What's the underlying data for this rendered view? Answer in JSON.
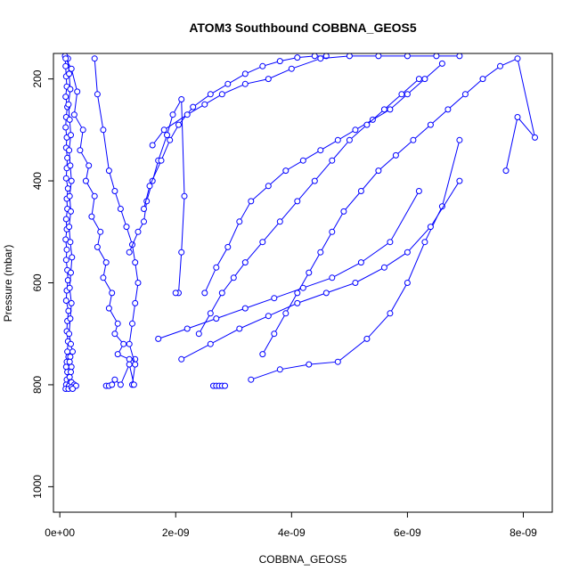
{
  "chart_data": {
    "type": "line",
    "title": "ATOM3 Southbound COBBNA_GEOS5",
    "xlabel": "COBBNA_GEOS5",
    "ylabel": "Pressure (mbar)",
    "xlim": [
      -1.1e-10,
      8.5e-09
    ],
    "ylim": [
      1050,
      150
    ],
    "y_reversed": true,
    "x_ticks": [
      {
        "value": 0,
        "label": "0e+00"
      },
      {
        "value": 2e-09,
        "label": "2e-09"
      },
      {
        "value": 4e-09,
        "label": "4e-09"
      },
      {
        "value": 6e-09,
        "label": "6e-09"
      },
      {
        "value": 8e-09,
        "label": "8e-09"
      }
    ],
    "y_ticks": [
      {
        "value": 200,
        "label": "200"
      },
      {
        "value": 400,
        "label": "400"
      },
      {
        "value": 600,
        "label": "600"
      },
      {
        "value": 800,
        "label": "800"
      },
      {
        "value": 1000,
        "label": "1000"
      }
    ],
    "series_color": "#0000ff",
    "marker": "open-circle",
    "grid": false,
    "series": [
      {
        "x": [
          9e-11,
          1e-10,
          1.1e-10,
          1.2e-10,
          1e-10,
          1.3e-10,
          1.1e-10,
          1e-10,
          1.2e-10,
          1.1e-10,
          1.3e-10,
          1.2e-10,
          1.1e-10,
          1.4e-10,
          1.2e-10,
          1.3e-10,
          1.1e-10,
          1.2e-10,
          1e-10,
          1.2e-10,
          1.1e-10,
          1.3e-10,
          1.4e-10,
          1.2e-10,
          1.1e-10,
          1.5e-10,
          1.3e-10,
          1.2e-10,
          1.4e-10,
          1.3e-10,
          1.5e-10,
          1.2e-10,
          1.1e-10,
          1.3e-10,
          1.2e-10,
          1.1e-10,
          1e-10
        ],
        "y": [
          155,
          175,
          195,
          215,
          235,
          255,
          275,
          295,
          315,
          335,
          355,
          375,
          395,
          415,
          435,
          455,
          475,
          495,
          515,
          535,
          555,
          575,
          595,
          615,
          635,
          655,
          675,
          695,
          715,
          735,
          745,
          755,
          765,
          775,
          790,
          800,
          808
        ]
      },
      {
        "x": [
          1.4e-10,
          1.6e-10,
          1.8e-10,
          1.5e-10,
          1.7e-10,
          1.9e-10,
          1.6e-10,
          1.8e-10,
          2e-10,
          1.7e-10,
          1.9e-10,
          1.6e-10,
          1.8e-10,
          2.1e-10,
          1.9e-10,
          1.7e-10,
          2e-10,
          1.8e-10,
          1.6e-10,
          1.9e-10,
          2.2e-10,
          1.8e-10,
          1.7e-10,
          2e-10,
          1.9e-10,
          1.7e-10,
          1.8e-10,
          1.6e-10,
          1.5e-10
        ],
        "y": [
          160,
          190,
          220,
          250,
          280,
          310,
          340,
          370,
          400,
          430,
          460,
          490,
          520,
          550,
          580,
          610,
          640,
          670,
          700,
          720,
          735,
          745,
          755,
          765,
          775,
          785,
          795,
          802,
          808
        ]
      },
      {
        "x": [
          1e-10,
          2e-10,
          3e-10,
          2.5e-10,
          4e-10,
          3.5e-10,
          5e-10,
          4.5e-10,
          6e-10,
          5.5e-10,
          7e-10,
          6.5e-10,
          8e-10,
          7.5e-10,
          9e-10,
          8.5e-10,
          1e-09,
          9.5e-10,
          1.1e-09,
          1e-09,
          1.2e-09,
          1.3e-09
        ],
        "y": [
          160,
          180,
          225,
          270,
          300,
          340,
          370,
          400,
          430,
          470,
          500,
          530,
          560,
          590,
          620,
          650,
          680,
          700,
          720,
          740,
          750,
          750
        ]
      },
      {
        "x": [
          6e-10,
          6.5e-10,
          7.5e-10,
          8.5e-10,
          9.5e-10,
          1.05e-09,
          1.15e-09,
          1.25e-09,
          1.3e-09,
          1.35e-09,
          1.3e-09,
          1.25e-09,
          1.2e-09,
          1.3e-09,
          1.25e-09
        ],
        "y": [
          160,
          230,
          300,
          380,
          420,
          455,
          490,
          525,
          560,
          600,
          640,
          680,
          720,
          760,
          800
        ]
      },
      {
        "x": [
          1.2e-09,
          1.35e-09,
          1.45e-09,
          1.5e-09,
          1.6e-09,
          1.7e-09,
          1.85e-09,
          1.95e-09,
          2.1e-09,
          2.15e-09,
          2.1e-09,
          2.05e-09,
          2e-09
        ],
        "y": [
          540,
          500,
          480,
          440,
          400,
          360,
          310,
          270,
          240,
          430,
          540,
          620,
          620
        ]
      },
      {
        "x": [
          1.45e-09,
          1.55e-09,
          1.75e-09,
          1.9e-09,
          2.05e-09,
          2.3e-09,
          2.6e-09,
          2.9e-09,
          3.2e-09,
          3.5e-09,
          3.8e-09,
          4.1e-09,
          4.4e-09,
          4.6e-09
        ],
        "y": [
          455,
          410,
          360,
          320,
          290,
          255,
          230,
          210,
          190,
          175,
          165,
          158,
          155,
          155
        ]
      },
      {
        "x": [
          1.6e-09,
          1.8e-09,
          2.2e-09,
          2.5e-09,
          2.8e-09,
          3.2e-09,
          3.6e-09,
          4e-09,
          4.5e-09,
          5e-09,
          5.5e-09,
          6e-09,
          6.5e-09,
          6.9e-09
        ],
        "y": [
          330,
          300,
          270,
          250,
          230,
          210,
          200,
          180,
          160,
          155,
          155,
          155,
          155,
          155
        ]
      },
      {
        "x": [
          2.5e-09,
          2.7e-09,
          2.9e-09,
          3.1e-09,
          3.3e-09,
          3.6e-09,
          3.9e-09,
          4.2e-09,
          4.5e-09,
          4.8e-09,
          5.1e-09,
          5.4e-09,
          5.7e-09,
          6e-09,
          6.3e-09,
          6.6e-09
        ],
        "y": [
          620,
          570,
          530,
          480,
          440,
          410,
          380,
          360,
          340,
          320,
          300,
          280,
          260,
          230,
          200,
          170
        ]
      },
      {
        "x": [
          2.4e-09,
          2.6e-09,
          2.8e-09,
          3e-09,
          3.2e-09,
          3.5e-09,
          3.8e-09,
          4.1e-09,
          4.4e-09,
          4.7e-09,
          5e-09,
          5.3e-09,
          5.6e-09,
          5.9e-09,
          6.2e-09
        ],
        "y": [
          700,
          660,
          620,
          590,
          560,
          520,
          480,
          440,
          400,
          360,
          320,
          290,
          260,
          230,
          200
        ]
      },
      {
        "x": [
          3.5e-09,
          3.7e-09,
          3.9e-09,
          4.1e-09,
          4.3e-09,
          4.5e-09,
          4.7e-09,
          4.9e-09,
          5.2e-09,
          5.5e-09,
          5.8e-09,
          6.1e-09,
          6.4e-09,
          6.7e-09,
          7e-09,
          7.3e-09,
          7.6e-09,
          7.9e-09,
          8.2e-09,
          7.9e-09,
          7.7e-09
        ],
        "y": [
          740,
          700,
          660,
          620,
          580,
          540,
          500,
          460,
          420,
          380,
          350,
          320,
          290,
          260,
          230,
          200,
          175,
          160,
          315,
          275,
          380
        ]
      },
      {
        "x": [
          3.3e-09,
          3.8e-09,
          4.3e-09,
          4.8e-09,
          5.3e-09,
          5.7e-09,
          6e-09,
          6.3e-09,
          6.6e-09,
          6.9e-09
        ],
        "y": [
          790,
          770,
          760,
          755,
          710,
          660,
          600,
          520,
          450,
          320
        ]
      },
      {
        "x": [
          2.1e-09,
          2.6e-09,
          3.1e-09,
          3.6e-09,
          4.1e-09,
          4.6e-09,
          5.1e-09,
          5.6e-09,
          6e-09,
          6.4e-09,
          6.9e-09
        ],
        "y": [
          750,
          720,
          690,
          665,
          640,
          620,
          600,
          570,
          540,
          490,
          400
        ]
      },
      {
        "x": [
          1.7e-09,
          2.2e-09,
          2.7e-09,
          3.2e-09,
          3.7e-09,
          4.2e-09,
          4.7e-09,
          5.2e-09,
          5.7e-09,
          6.2e-09
        ],
        "y": [
          710,
          690,
          670,
          650,
          630,
          610,
          590,
          560,
          520,
          420
        ]
      },
      {
        "x": [
          2.65e-09,
          2.7e-09,
          2.75e-09,
          2.8e-09,
          2.85e-09
        ],
        "y": [
          802,
          802,
          802,
          802,
          802
        ]
      },
      {
        "x": [
          8e-10,
          8.5e-10,
          9e-10,
          9.5e-10,
          1.05e-09,
          1.2e-09,
          1.28e-09
        ],
        "y": [
          802,
          802,
          800,
          790,
          800,
          760,
          800
        ]
      },
      {
        "x": [
          2e-10,
          2.5e-10,
          2e-10,
          2.8e-10,
          2.2e-10
        ],
        "y": [
          795,
          800,
          805,
          802,
          808
        ]
      }
    ]
  }
}
